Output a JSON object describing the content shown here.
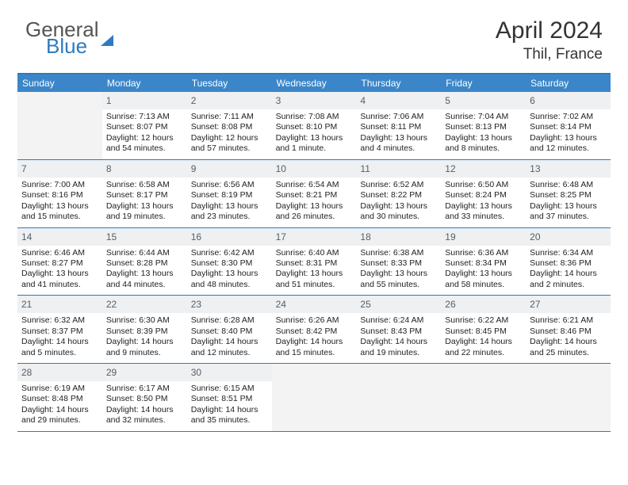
{
  "logo": {
    "word1": "General",
    "word2": "Blue",
    "triangle_color": "#2f7ac0"
  },
  "title": "April 2024",
  "location": "Thil, France",
  "colors": {
    "header_bar": "#3b86c8",
    "rule": "#2f7ac0",
    "daynum_bg": "#eef0f1",
    "empty_bg": "#f3f3f3",
    "text": "#222222",
    "daynum_text": "#55606a"
  },
  "typography": {
    "title_size_pt": 22,
    "location_size_pt": 14,
    "dow_size_pt": 9,
    "body_size_pt": 8
  },
  "layout": {
    "columns": 7,
    "weeks": 5,
    "start_blank_cells": 1
  },
  "dow": [
    "Sunday",
    "Monday",
    "Tuesday",
    "Wednesday",
    "Thursday",
    "Friday",
    "Saturday"
  ],
  "days": [
    {
      "n": 1,
      "sunrise": "7:13 AM",
      "sunset": "8:07 PM",
      "daylight": "12 hours and 54 minutes."
    },
    {
      "n": 2,
      "sunrise": "7:11 AM",
      "sunset": "8:08 PM",
      "daylight": "12 hours and 57 minutes."
    },
    {
      "n": 3,
      "sunrise": "7:08 AM",
      "sunset": "8:10 PM",
      "daylight": "13 hours and 1 minute."
    },
    {
      "n": 4,
      "sunrise": "7:06 AM",
      "sunset": "8:11 PM",
      "daylight": "13 hours and 4 minutes."
    },
    {
      "n": 5,
      "sunrise": "7:04 AM",
      "sunset": "8:13 PM",
      "daylight": "13 hours and 8 minutes."
    },
    {
      "n": 6,
      "sunrise": "7:02 AM",
      "sunset": "8:14 PM",
      "daylight": "13 hours and 12 minutes."
    },
    {
      "n": 7,
      "sunrise": "7:00 AM",
      "sunset": "8:16 PM",
      "daylight": "13 hours and 15 minutes."
    },
    {
      "n": 8,
      "sunrise": "6:58 AM",
      "sunset": "8:17 PM",
      "daylight": "13 hours and 19 minutes."
    },
    {
      "n": 9,
      "sunrise": "6:56 AM",
      "sunset": "8:19 PM",
      "daylight": "13 hours and 23 minutes."
    },
    {
      "n": 10,
      "sunrise": "6:54 AM",
      "sunset": "8:21 PM",
      "daylight": "13 hours and 26 minutes."
    },
    {
      "n": 11,
      "sunrise": "6:52 AM",
      "sunset": "8:22 PM",
      "daylight": "13 hours and 30 minutes."
    },
    {
      "n": 12,
      "sunrise": "6:50 AM",
      "sunset": "8:24 PM",
      "daylight": "13 hours and 33 minutes."
    },
    {
      "n": 13,
      "sunrise": "6:48 AM",
      "sunset": "8:25 PM",
      "daylight": "13 hours and 37 minutes."
    },
    {
      "n": 14,
      "sunrise": "6:46 AM",
      "sunset": "8:27 PM",
      "daylight": "13 hours and 41 minutes."
    },
    {
      "n": 15,
      "sunrise": "6:44 AM",
      "sunset": "8:28 PM",
      "daylight": "13 hours and 44 minutes."
    },
    {
      "n": 16,
      "sunrise": "6:42 AM",
      "sunset": "8:30 PM",
      "daylight": "13 hours and 48 minutes."
    },
    {
      "n": 17,
      "sunrise": "6:40 AM",
      "sunset": "8:31 PM",
      "daylight": "13 hours and 51 minutes."
    },
    {
      "n": 18,
      "sunrise": "6:38 AM",
      "sunset": "8:33 PM",
      "daylight": "13 hours and 55 minutes."
    },
    {
      "n": 19,
      "sunrise": "6:36 AM",
      "sunset": "8:34 PM",
      "daylight": "13 hours and 58 minutes."
    },
    {
      "n": 20,
      "sunrise": "6:34 AM",
      "sunset": "8:36 PM",
      "daylight": "14 hours and 2 minutes."
    },
    {
      "n": 21,
      "sunrise": "6:32 AM",
      "sunset": "8:37 PM",
      "daylight": "14 hours and 5 minutes."
    },
    {
      "n": 22,
      "sunrise": "6:30 AM",
      "sunset": "8:39 PM",
      "daylight": "14 hours and 9 minutes."
    },
    {
      "n": 23,
      "sunrise": "6:28 AM",
      "sunset": "8:40 PM",
      "daylight": "14 hours and 12 minutes."
    },
    {
      "n": 24,
      "sunrise": "6:26 AM",
      "sunset": "8:42 PM",
      "daylight": "14 hours and 15 minutes."
    },
    {
      "n": 25,
      "sunrise": "6:24 AM",
      "sunset": "8:43 PM",
      "daylight": "14 hours and 19 minutes."
    },
    {
      "n": 26,
      "sunrise": "6:22 AM",
      "sunset": "8:45 PM",
      "daylight": "14 hours and 22 minutes."
    },
    {
      "n": 27,
      "sunrise": "6:21 AM",
      "sunset": "8:46 PM",
      "daylight": "14 hours and 25 minutes."
    },
    {
      "n": 28,
      "sunrise": "6:19 AM",
      "sunset": "8:48 PM",
      "daylight": "14 hours and 29 minutes."
    },
    {
      "n": 29,
      "sunrise": "6:17 AM",
      "sunset": "8:50 PM",
      "daylight": "14 hours and 32 minutes."
    },
    {
      "n": 30,
      "sunrise": "6:15 AM",
      "sunset": "8:51 PM",
      "daylight": "14 hours and 35 minutes."
    }
  ],
  "labels": {
    "sunrise": "Sunrise:",
    "sunset": "Sunset:",
    "daylight": "Daylight:"
  }
}
